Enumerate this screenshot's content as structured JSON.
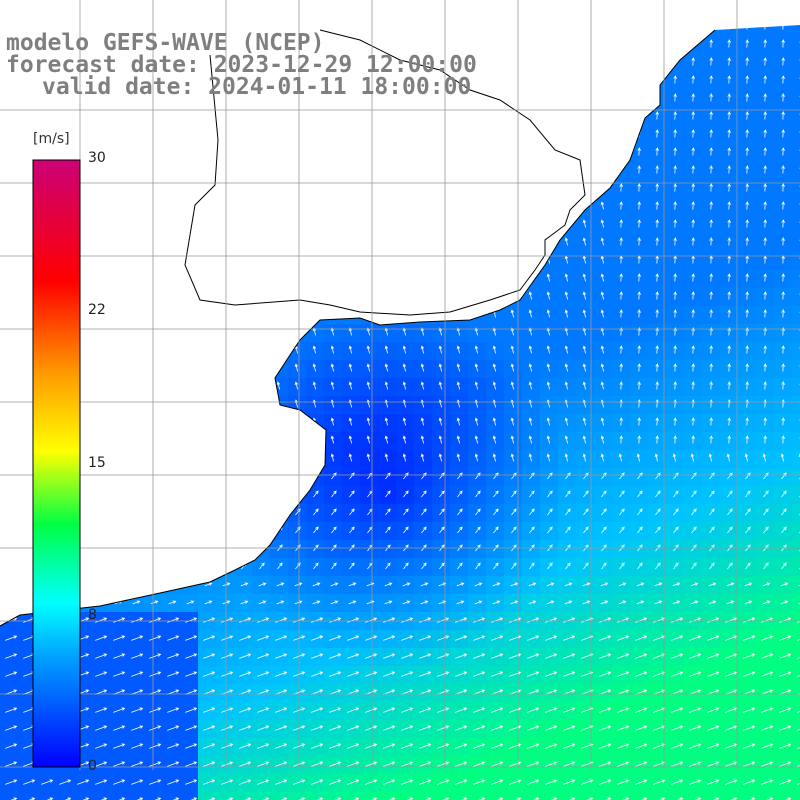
{
  "title": {
    "model": "modelo GEFS-WAVE (NCEP)",
    "forecast": "forecast date: 2023-12-29 12:00:00",
    "valid": "valid date: 2024-01-11 18:00:00"
  },
  "colorbar": {
    "unit": "[m/s]",
    "min": 0,
    "max": 30,
    "tick_labels": [
      "30",
      "22",
      "15",
      "8",
      "0"
    ],
    "colors": [
      "#0000ff",
      "#00aaff",
      "#00ffff",
      "#00ff00",
      "#ffff00",
      "#ff8800",
      "#ff0000",
      "#cc0066"
    ]
  },
  "map": {
    "field": "wind speed / direction",
    "land_color": "#ffffff",
    "grid_color": "#999999"
  }
}
